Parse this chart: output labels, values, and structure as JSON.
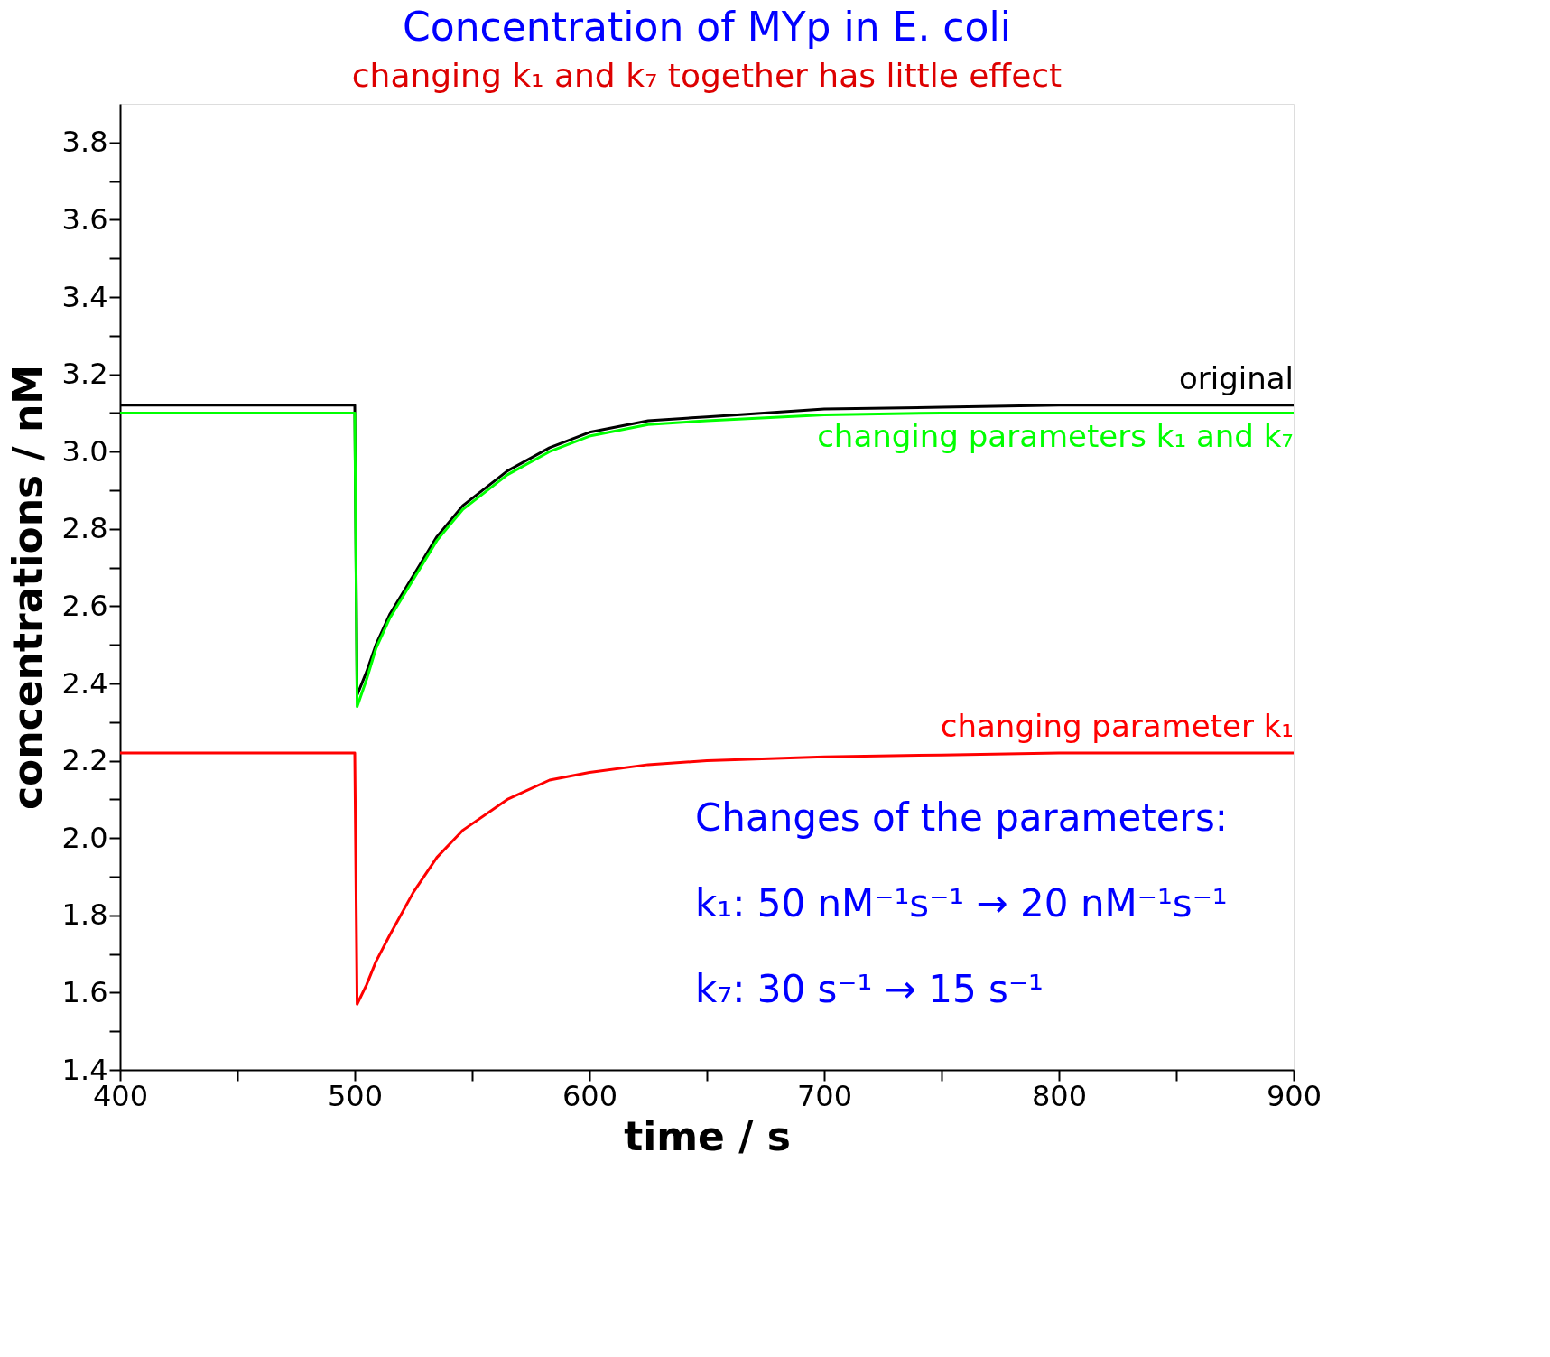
{
  "chart_data": {
    "type": "line",
    "title": "Concentration of MYp in E. coli",
    "subtitle": "changing k₁ and k₇ together has little effect",
    "xlabel": "time / s",
    "ylabel": "concentrations / nM",
    "x": [
      400,
      500,
      501,
      505,
      509,
      515,
      525,
      535,
      546,
      565,
      583,
      600,
      625,
      650,
      700,
      750,
      800,
      900
    ],
    "series": [
      {
        "name": "original",
        "color": "#000000",
        "values": [
          3.12,
          3.12,
          2.37,
          2.43,
          2.5,
          2.58,
          2.68,
          2.78,
          2.86,
          2.95,
          3.01,
          3.05,
          3.08,
          3.09,
          3.11,
          3.115,
          3.12,
          3.12
        ]
      },
      {
        "name": "changing parameters k₁ and k₇",
        "color": "#00ff00",
        "values": [
          3.1,
          3.1,
          2.34,
          2.41,
          2.49,
          2.57,
          2.67,
          2.77,
          2.85,
          2.94,
          3.0,
          3.04,
          3.07,
          3.08,
          3.095,
          3.1,
          3.1,
          3.1
        ]
      },
      {
        "name": "changing parameter k₁",
        "color": "#ff0000",
        "values": [
          2.22,
          2.22,
          1.57,
          1.62,
          1.68,
          1.75,
          1.86,
          1.95,
          2.02,
          2.1,
          2.15,
          2.17,
          2.19,
          2.2,
          2.21,
          2.215,
          2.22,
          2.22
        ]
      }
    ],
    "xlim": [
      400,
      900
    ],
    "ylim": [
      1.4,
      3.9
    ],
    "xticks": [
      400,
      {
        "value": 450,
        "label": null
      },
      500,
      {
        "value": 550,
        "label": null
      },
      600,
      {
        "value": 650,
        "label": null
      },
      700,
      {
        "value": 750,
        "label": null
      },
      800,
      {
        "value": 850,
        "label": null
      },
      900
    ],
    "yticks": [
      1.4,
      {
        "value": 1.5,
        "label": null
      },
      1.6,
      {
        "value": 1.7,
        "label": null
      },
      1.8,
      {
        "value": 1.9,
        "label": null
      },
      {
        "value": 2,
        "label": "2.0"
      },
      {
        "value": 2.1,
        "label": null
      },
      2.2,
      {
        "value": 2.3,
        "label": null
      },
      2.4,
      {
        "value": 2.5,
        "label": null
      },
      2.6,
      {
        "value": 2.7,
        "label": null
      },
      2.8,
      {
        "value": 2.9,
        "label": null
      },
      {
        "value": 3,
        "label": "3.0"
      },
      {
        "value": 3.1,
        "label": null
      },
      3.2,
      {
        "value": 3.3,
        "label": null
      },
      3.4,
      {
        "value": 3.5,
        "label": null
      },
      3.6,
      {
        "value": 3.7,
        "label": null
      },
      3.8
    ],
    "annotations": [
      "Changes of the parameters:",
      "k₁: 50 nM⁻¹s⁻¹ → 20 nM⁻¹s⁻¹",
      "k₇: 30 s⁻¹ → 15 s⁻¹"
    ],
    "grid": false,
    "legend": false,
    "marker": "none",
    "line_style": "solid"
  }
}
